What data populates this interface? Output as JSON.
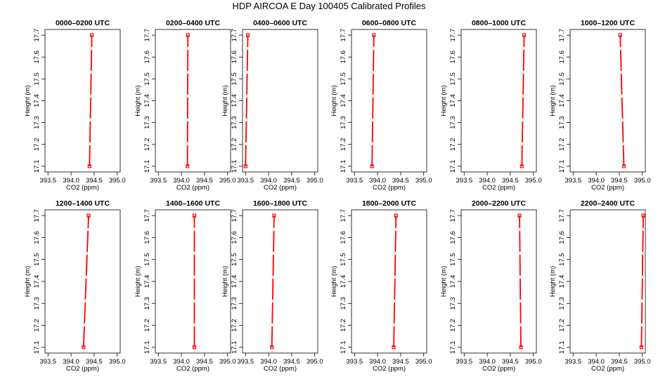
{
  "title": "HDP AIRCOA E  Day 100405  Calibrated Profiles",
  "colors": {
    "series": "#ff0000",
    "axis": "#000000",
    "background": "#ffffff"
  },
  "axes": {
    "xlabel": "CO2 (ppm)",
    "ylabel": "Height (m)",
    "xlim": [
      393.5,
      395.0
    ],
    "ylim": [
      17.1,
      17.7
    ],
    "xticks": [
      "393.5",
      "394.0",
      "394.5",
      "395.0"
    ],
    "yticks": [
      "17.1",
      "17.2",
      "17.3",
      "17.4",
      "17.5",
      "17.6",
      "17.7"
    ]
  },
  "chart_data": [
    {
      "type": "line",
      "title": "0000–0200 UTC",
      "x": [
        394.4,
        394.45
      ],
      "y": [
        17.1,
        17.7
      ]
    },
    {
      "type": "line",
      "title": "0200–0400 UTC",
      "x": [
        394.13,
        394.14
      ],
      "y": [
        17.1,
        17.7
      ]
    },
    {
      "type": "line",
      "title": "0400–0600 UTC",
      "x": [
        393.5,
        393.55
      ],
      "y": [
        17.1,
        17.7
      ]
    },
    {
      "type": "line",
      "title": "0600–0800 UTC",
      "x": [
        393.88,
        393.92
      ],
      "y": [
        17.1,
        17.7
      ]
    },
    {
      "type": "line",
      "title": "0800–1000 UTC",
      "x": [
        394.75,
        394.8
      ],
      "y": [
        17.1,
        17.7
      ]
    },
    {
      "type": "line",
      "title": "1000–1200 UTC",
      "x": [
        394.6,
        394.52
      ],
      "y": [
        17.1,
        17.7
      ]
    },
    {
      "type": "line",
      "title": "1200–1400 UTC",
      "x": [
        394.27,
        394.38
      ],
      "y": [
        17.1,
        17.7
      ]
    },
    {
      "type": "line",
      "title": "1400–1600 UTC",
      "x": [
        394.28,
        394.28
      ],
      "y": [
        17.1,
        17.7
      ]
    },
    {
      "type": "line",
      "title": "1600–1800 UTC",
      "x": [
        394.07,
        394.12
      ],
      "y": [
        17.1,
        17.7
      ]
    },
    {
      "type": "line",
      "title": "1800–2000 UTC",
      "x": [
        394.35,
        394.4
      ],
      "y": [
        17.1,
        17.7
      ]
    },
    {
      "type": "line",
      "title": "2000–2200 UTC",
      "x": [
        394.73,
        394.7
      ],
      "y": [
        17.1,
        17.7
      ]
    },
    {
      "type": "line",
      "title": "2200–2400 UTC",
      "x": [
        394.98,
        395.02
      ],
      "y": [
        17.1,
        17.7
      ]
    }
  ]
}
